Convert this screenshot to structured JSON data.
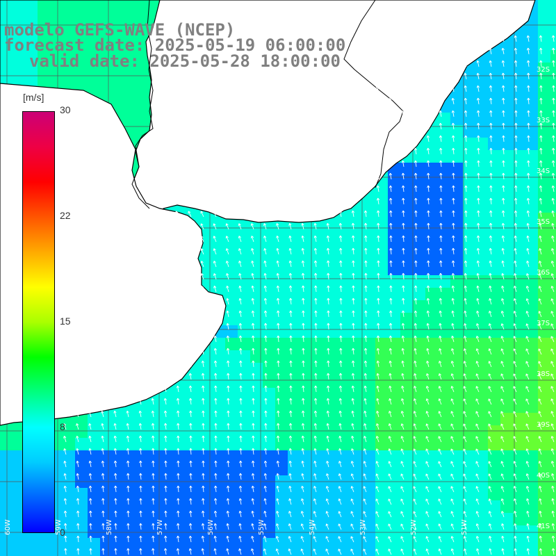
{
  "title": {
    "line1": "modelo GEFS-WAVE (NCEP)",
    "line2": "forecast date: 2025-05-19 06:00:00",
    "line3": "valid date: 2025-05-28 18:00:00"
  },
  "colorbar": {
    "unit": "[m/s]",
    "ticks": [
      "30",
      "22",
      "15",
      "8",
      "0"
    ],
    "stops": [
      "#0000ff",
      "#0066ff",
      "#00ccff",
      "#00ffff",
      "#00ff80",
      "#00ff00",
      "#aaff00",
      "#ffff00",
      "#ffaa00",
      "#ff5500",
      "#ff0000",
      "#ee0044",
      "#cc0077"
    ]
  },
  "map": {
    "lat_labels": [
      "32S",
      "33S",
      "34S",
      "35S",
      "36S",
      "37S",
      "38S",
      "39S",
      "40S",
      "41S"
    ],
    "lon_labels": [
      "60W",
      "59W",
      "58W",
      "57W",
      "56W",
      "55W",
      "54W",
      "53W",
      "52W",
      "51W"
    ],
    "land_color": "#ffffff",
    "ocean_palette": [
      "#0066ff",
      "#00ccff",
      "#00ffdd",
      "#00ff99",
      "#33ff55",
      "#66ff33"
    ]
  }
}
